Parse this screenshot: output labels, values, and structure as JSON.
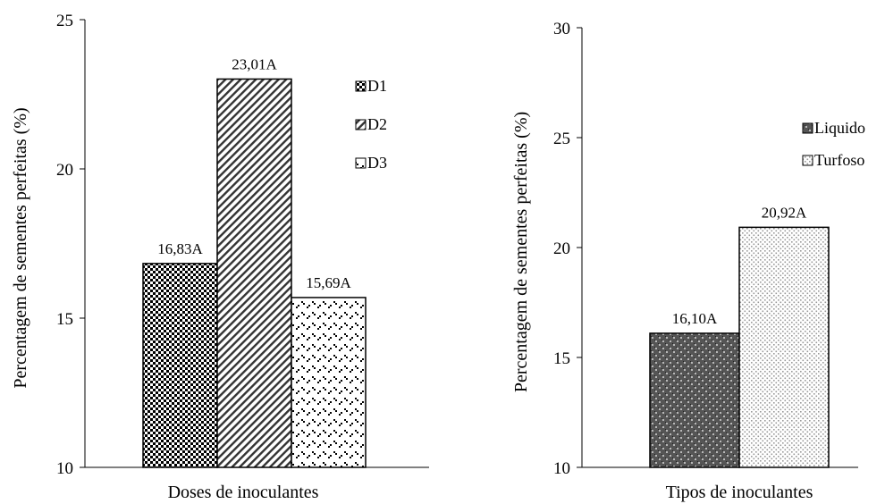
{
  "chart_data": [
    {
      "type": "bar",
      "xlabel": "Doses de inoculantes",
      "ylabel": "Percentagem de sementes perfeitas (%)",
      "ylim": [
        10,
        25
      ],
      "yticks": [
        10,
        15,
        20,
        25
      ],
      "series": [
        {
          "name": "D1",
          "value": 16.83,
          "label": "16,83A",
          "pattern": "checker"
        },
        {
          "name": "D2",
          "value": 23.01,
          "label": "23,01A",
          "pattern": "diagonal"
        },
        {
          "name": "D3",
          "value": 15.69,
          "label": "15,69A",
          "pattern": "dots-diag"
        }
      ],
      "legend_position": "top-right",
      "grid": false
    },
    {
      "type": "bar",
      "xlabel": "Tipos de inoculantes",
      "ylabel": "Percentagem de sementes perfeitas (%)",
      "ylim": [
        10,
        30
      ],
      "yticks": [
        10,
        15,
        20,
        25,
        30
      ],
      "series": [
        {
          "name": "Liquido",
          "value": 16.1,
          "label": "16,10A",
          "pattern": "dark-dots"
        },
        {
          "name": "Turfoso",
          "value": 20.92,
          "label": "20,92A",
          "pattern": "light-dots"
        }
      ],
      "legend_position": "top-right",
      "grid": false
    }
  ]
}
